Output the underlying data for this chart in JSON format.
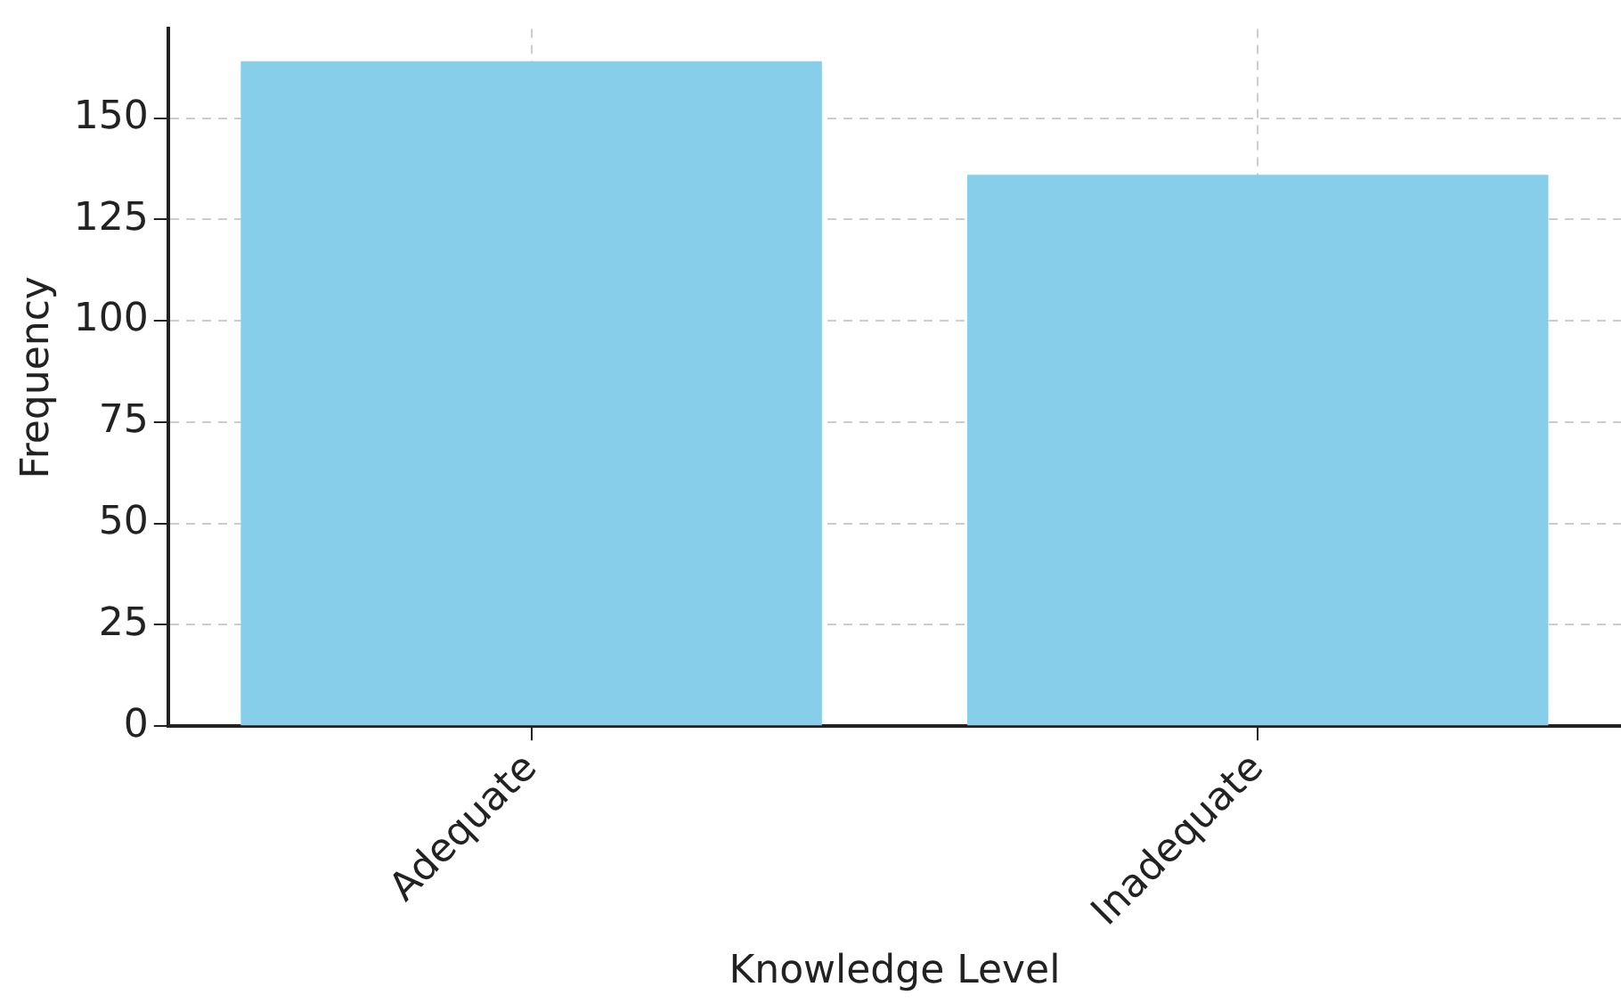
{
  "chart_data": {
    "type": "bar",
    "xlabel": "Knowledge Level",
    "ylabel": "Frequency",
    "categories": [
      "Adequate",
      "Inadequate"
    ],
    "values": [
      164,
      136
    ],
    "color": "#87ceeb",
    "ylim": [
      0,
      172
    ],
    "yticks": [
      0,
      25,
      50,
      75,
      100,
      125,
      150
    ],
    "grid": true
  }
}
